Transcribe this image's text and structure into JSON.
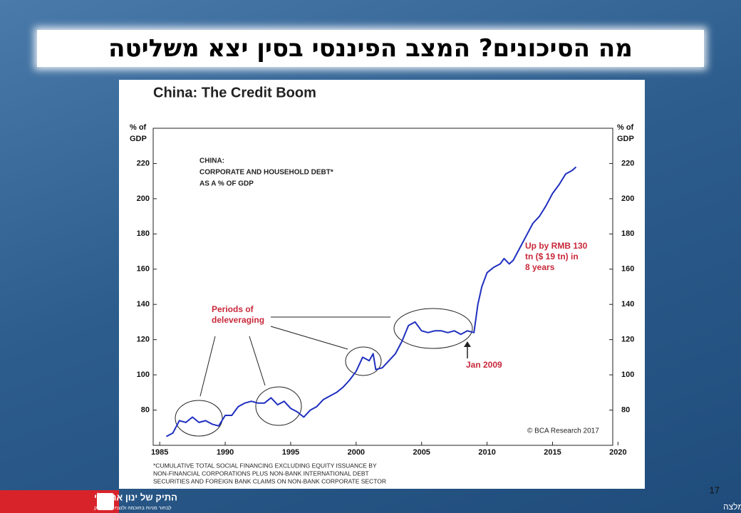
{
  "slide": {
    "title": "מה הסיכונים? המצב הפיננסי בסין יצא משליטה",
    "page_number": 17,
    "disclaimer": "אין לראות בדברים ייעוץ או המלצה",
    "logo": {
      "name": "התיק של ינון אריאלי",
      "tagline": "לבחור מניות בחוכמה ולנצח את השוק"
    }
  },
  "chart_data": {
    "type": "line",
    "title": "China: The Credit Boom",
    "ylabel": [
      "% of",
      "GDP"
    ],
    "y2label": [
      "% of",
      "GDP"
    ],
    "annotations": {
      "series_label": [
        "CHINA:",
        "CORPORATE AND HOUSEHOLD DEBT*",
        "AS A % OF GDP"
      ],
      "deleveraging": [
        "Periods of",
        "deleveraging"
      ],
      "growth": [
        "Up by RMB 130",
        "tn ($ 19 tn) in",
        "8 years"
      ],
      "event": "Jan 2009",
      "source": "© BCA Research 2017",
      "footnote": [
        "*CUMULATIVE TOTAL SOCIAL FINANCING EXCLUDING EQUITY ISSUANCE BY",
        "NON-FINANCIAL CORPORATIONS PLUS NON-BANK INTERNATIONAL DEBT",
        "SECURITIES AND FOREIGN BANK CLAIMS ON NON-BANK CORPORATE SECTOR"
      ]
    },
    "xlim": [
      1984.5,
      2019.6
    ],
    "xticks": [
      1985,
      1990,
      1995,
      2000,
      2005,
      2010,
      2015,
      2020
    ],
    "ylim": [
      60,
      240
    ],
    "yticks": [
      80,
      100,
      120,
      140,
      160,
      180,
      200,
      220
    ],
    "y2lim": [
      60,
      240
    ],
    "y2ticks": [
      80,
      100,
      120,
      140,
      160,
      180,
      200,
      220
    ],
    "grid": false,
    "series": [
      {
        "color": "#1f2fbf",
        "x": [
          1985.5,
          1986,
          1986.5,
          1987,
          1987.5,
          1988,
          1988.5,
          1989,
          1989.5,
          1990,
          1990.5,
          1991,
          1991.5,
          1992,
          1992.5,
          1993,
          1993.5,
          1994,
          1994.5,
          1995,
          1995.5,
          1996,
          1996.5,
          1997,
          1997.5,
          1998,
          1998.5,
          1999,
          1999.5,
          2000,
          2000.5,
          2001,
          2001.3,
          2001.5,
          2002,
          2002.5,
          2003,
          2003.5,
          2004,
          2004.5,
          2005,
          2005.5,
          2006,
          2006.5,
          2007,
          2007.5,
          2008,
          2008.5,
          2009,
          2009.3,
          2009.6,
          2010,
          2010.5,
          2011,
          2011.3,
          2011.7,
          2012,
          2012.5,
          2013,
          2013.5,
          2014,
          2014.5,
          2015,
          2015.5,
          2016,
          2016.5,
          2016.8
        ],
        "values": [
          65,
          67,
          74,
          73,
          76,
          73,
          74,
          72,
          71,
          77,
          77,
          82,
          84,
          85,
          84,
          84,
          87,
          83,
          85,
          81,
          79,
          76,
          80,
          82,
          86,
          88,
          90,
          93,
          97,
          102,
          110,
          108,
          112,
          103,
          104,
          108,
          112,
          119,
          128,
          130,
          125,
          124,
          125,
          125,
          124,
          125,
          123,
          125,
          124,
          140,
          150,
          158,
          161,
          163,
          166,
          163,
          165,
          172,
          179,
          186,
          190,
          196,
          203,
          208,
          214,
          216,
          218
        ]
      }
    ]
  }
}
